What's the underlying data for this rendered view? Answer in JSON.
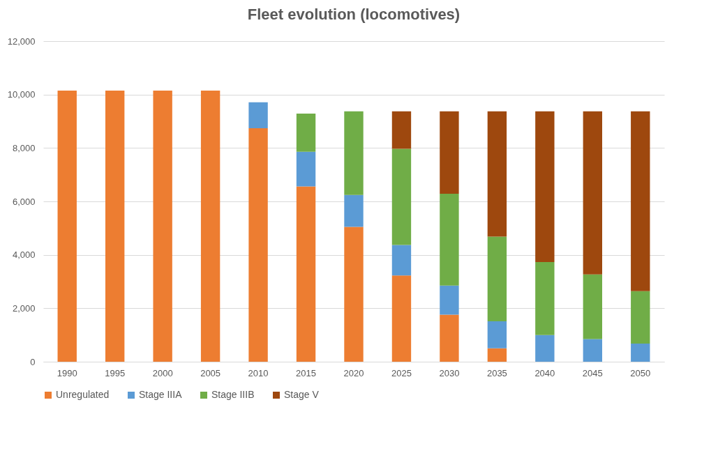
{
  "chart_data": {
    "type": "bar",
    "title": "Fleet evolution (locomotives)",
    "stacked": true,
    "categories": [
      "1990",
      "1995",
      "2000",
      "2005",
      "2010",
      "2015",
      "2020",
      "2025",
      "2030",
      "2035",
      "2040",
      "2045",
      "2050"
    ],
    "series": [
      {
        "name": "Unregulated",
        "color": "#ed7d31",
        "values": [
          10150,
          10150,
          10150,
          10150,
          8740,
          6560,
          5050,
          3230,
          1760,
          500,
          0,
          0,
          0
        ]
      },
      {
        "name": "Stage IIIA",
        "color": "#5b9bd5",
        "values": [
          0,
          0,
          0,
          0,
          970,
          1300,
          1190,
          1140,
          1090,
          1010,
          1000,
          850,
          680
        ]
      },
      {
        "name": "Stage IIIB",
        "color": "#70ad47",
        "values": [
          0,
          0,
          0,
          0,
          0,
          1430,
          3130,
          3600,
          3440,
          3170,
          2730,
          2420,
          1960
        ]
      },
      {
        "name": "Stage V",
        "color": "#9e480e",
        "values": [
          0,
          0,
          0,
          0,
          0,
          0,
          0,
          1400,
          3080,
          4690,
          5640,
          6100,
          6730
        ]
      }
    ],
    "ylim": [
      0,
      12000
    ],
    "yticks": [
      0,
      {
        "value": 2000,
        "label": "2,000"
      },
      {
        "value": 4000,
        "label": "4,000"
      },
      {
        "value": 6000,
        "label": "6,000"
      },
      {
        "value": 8000,
        "label": "8,000"
      },
      {
        "value": 10000,
        "label": "10,000"
      },
      {
        "value": 12000,
        "label": "12,000"
      }
    ],
    "grid": "y",
    "legend": "bottom"
  }
}
